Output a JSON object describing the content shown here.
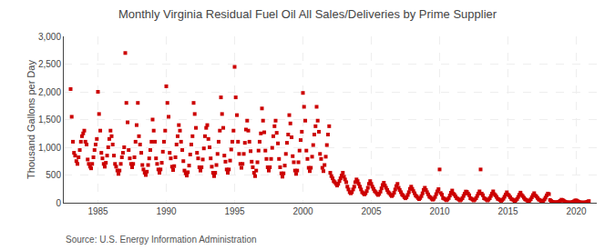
{
  "chart_data": {
    "type": "scatter",
    "title": "Monthly Virginia Residual Fuel Oil All Sales/Deliveries by Prime Supplier",
    "ylabel": "Thousand Gallons per Day",
    "annotations": [
      "Source: U.S. Energy Information Administration"
    ],
    "color": "#cc0000",
    "marker": "square",
    "grid": true,
    "xlim": [
      1982.5,
      2021.5
    ],
    "ylim": [
      0,
      3000
    ],
    "xticks": [
      1985,
      1990,
      1995,
      2000,
      2005,
      2010,
      2015,
      2020
    ],
    "yticks": [
      0,
      500,
      {
        "value": 1000,
        "label": "1,000"
      },
      {
        "value": 1500,
        "label": "1,500"
      },
      {
        "value": 2000,
        "label": "2,000"
      },
      {
        "value": 2500,
        "label": "2,500"
      },
      {
        "value": 3000,
        "label": "3,000"
      }
    ],
    "x": [
      1983.0,
      1983.08,
      1983.17,
      1983.25,
      1983.33,
      1983.42,
      1983.5,
      1983.58,
      1983.67,
      1983.75,
      1983.83,
      1983.92,
      1984.0,
      1984.08,
      1984.17,
      1984.25,
      1984.33,
      1984.42,
      1984.5,
      1984.58,
      1984.67,
      1984.75,
      1984.83,
      1984.92,
      1985.0,
      1985.08,
      1985.17,
      1985.25,
      1985.33,
      1985.42,
      1985.5,
      1985.58,
      1985.67,
      1985.75,
      1985.83,
      1985.92,
      1986.0,
      1986.08,
      1986.17,
      1986.25,
      1986.33,
      1986.42,
      1986.5,
      1986.58,
      1986.67,
      1986.75,
      1986.83,
      1986.92,
      1987.0,
      1987.08,
      1987.17,
      1987.25,
      1987.33,
      1987.42,
      1987.5,
      1987.58,
      1987.67,
      1987.75,
      1987.83,
      1987.92,
      1988.0,
      1988.08,
      1988.17,
      1988.25,
      1988.33,
      1988.42,
      1988.5,
      1988.58,
      1988.67,
      1988.75,
      1988.83,
      1988.92,
      1989.0,
      1989.08,
      1989.17,
      1989.25,
      1989.33,
      1989.42,
      1989.5,
      1989.58,
      1989.67,
      1989.75,
      1989.83,
      1989.92,
      1990.0,
      1990.08,
      1990.17,
      1990.25,
      1990.33,
      1990.42,
      1990.5,
      1990.58,
      1990.67,
      1990.75,
      1990.83,
      1990.92,
      1991.0,
      1991.08,
      1991.17,
      1991.25,
      1991.33,
      1991.42,
      1991.5,
      1991.58,
      1991.67,
      1991.75,
      1991.83,
      1991.92,
      1992.0,
      1992.08,
      1992.17,
      1992.25,
      1992.33,
      1992.42,
      1992.5,
      1992.58,
      1992.67,
      1992.75,
      1992.83,
      1992.92,
      1993.0,
      1993.08,
      1993.17,
      1993.25,
      1993.33,
      1993.42,
      1993.5,
      1993.58,
      1993.67,
      1993.75,
      1993.83,
      1993.92,
      1994.0,
      1994.08,
      1994.17,
      1994.25,
      1994.33,
      1994.42,
      1994.5,
      1994.58,
      1994.67,
      1994.75,
      1994.83,
      1994.92,
      1995.0,
      1995.08,
      1995.17,
      1995.25,
      1995.33,
      1995.42,
      1995.5,
      1995.58,
      1995.67,
      1995.75,
      1995.83,
      1995.92,
      1996.0,
      1996.08,
      1996.17,
      1996.25,
      1996.33,
      1996.42,
      1996.5,
      1996.58,
      1996.67,
      1996.75,
      1996.83,
      1996.92,
      1997.0,
      1997.08,
      1997.17,
      1997.25,
      1997.33,
      1997.42,
      1997.5,
      1997.58,
      1997.67,
      1997.75,
      1997.83,
      1997.92,
      1998.0,
      1998.08,
      1998.17,
      1998.25,
      1998.33,
      1998.42,
      1998.5,
      1998.58,
      1998.67,
      1998.75,
      1998.83,
      1998.92,
      1999.0,
      1999.08,
      1999.17,
      1999.25,
      1999.33,
      1999.42,
      1999.5,
      1999.58,
      1999.67,
      1999.75,
      1999.83,
      1999.92,
      2000.0,
      2000.08,
      2000.17,
      2000.25,
      2000.33,
      2000.42,
      2000.5,
      2000.58,
      2000.67,
      2000.75,
      2000.83,
      2000.92,
      2001.0,
      2001.08,
      2001.17,
      2001.25,
      2001.33,
      2001.42,
      2001.5,
      2001.58,
      2001.67,
      2001.75,
      2001.83,
      2001.92,
      2002.0,
      2002.08,
      2002.17,
      2002.25,
      2002.33,
      2002.42,
      2002.5,
      2002.58,
      2002.67,
      2002.75,
      2002.83,
      2002.92,
      2003.0,
      2003.08,
      2003.17,
      2003.25,
      2003.33,
      2003.42,
      2003.5,
      2003.58,
      2003.67,
      2003.75,
      2003.83,
      2003.92,
      2004.0,
      2004.08,
      2004.17,
      2004.25,
      2004.33,
      2004.42,
      2004.5,
      2004.58,
      2004.67,
      2004.75,
      2004.83,
      2004.92,
      2005.0,
      2005.08,
      2005.17,
      2005.25,
      2005.33,
      2005.42,
      2005.5,
      2005.58,
      2005.67,
      2005.75,
      2005.83,
      2005.92,
      2006.0,
      2006.08,
      2006.17,
      2006.25,
      2006.33,
      2006.42,
      2006.5,
      2006.58,
      2006.67,
      2006.75,
      2006.83,
      2006.92,
      2007.0,
      2007.08,
      2007.17,
      2007.25,
      2007.33,
      2007.42,
      2007.5,
      2007.58,
      2007.67,
      2007.75,
      2007.83,
      2007.92,
      2008.0,
      2008.08,
      2008.17,
      2008.25,
      2008.33,
      2008.42,
      2008.5,
      2008.58,
      2008.67,
      2008.75,
      2008.83,
      2008.92,
      2009.0,
      2009.08,
      2009.17,
      2009.25,
      2009.33,
      2009.42,
      2009.5,
      2009.58,
      2009.67,
      2009.75,
      2009.83,
      2009.92,
      2010.0,
      2010.08,
      2010.17,
      2010.25,
      2010.33,
      2010.42,
      2010.5,
      2010.58,
      2010.67,
      2010.75,
      2010.83,
      2010.92,
      2011.0,
      2011.08,
      2011.17,
      2011.25,
      2011.33,
      2011.42,
      2011.5,
      2011.58,
      2011.67,
      2011.75,
      2011.83,
      2011.92,
      2012.0,
      2012.08,
      2012.17,
      2012.25,
      2012.33,
      2012.42,
      2012.5,
      2012.58,
      2012.67,
      2012.75,
      2012.83,
      2012.92,
      2013.0,
      2013.08,
      2013.17,
      2013.25,
      2013.33,
      2013.42,
      2013.5,
      2013.58,
      2013.67,
      2013.75,
      2013.83,
      2013.92,
      2014.0,
      2014.08,
      2014.17,
      2014.25,
      2014.33,
      2014.42,
      2014.5,
      2014.58,
      2014.67,
      2014.75,
      2014.83,
      2014.92,
      2015.0,
      2015.08,
      2015.17,
      2015.25,
      2015.33,
      2015.42,
      2015.5,
      2015.58,
      2015.67,
      2015.75,
      2015.83,
      2015.92,
      2016.0,
      2016.08,
      2016.17,
      2016.25,
      2016.33,
      2016.42,
      2016.5,
      2016.58,
      2016.67,
      2016.75,
      2016.83,
      2016.92,
      2017.0,
      2017.08,
      2017.17,
      2017.25,
      2017.33,
      2017.42,
      2017.5,
      2017.58,
      2017.67,
      2017.75,
      2017.83,
      2017.92,
      2018.0,
      2018.08,
      2018.17,
      2018.25,
      2018.33,
      2018.42,
      2018.5,
      2018.58,
      2018.67,
      2018.75,
      2018.83,
      2018.92,
      2019.0,
      2019.08,
      2019.17,
      2019.25,
      2019.33,
      2019.42,
      2019.5,
      2019.58,
      2019.67,
      2019.75,
      2019.83,
      2019.92,
      2020.0,
      2020.08,
      2020.17,
      2020.25,
      2020.33,
      2020.42,
      2020.5,
      2020.58,
      2020.67,
      2020.75,
      2020.83,
      2020.92
    ],
    "values": [
      2050,
      1550,
      1100,
      900,
      850,
      750,
      700,
      820,
      950,
      1100,
      1200,
      1250,
      1300,
      1100,
      1050,
      780,
      700,
      650,
      620,
      700,
      820,
      950,
      1050,
      1150,
      2000,
      1600,
      1300,
      900,
      800,
      700,
      650,
      720,
      850,
      1000,
      1150,
      1300,
      1200,
      1050,
      850,
      700,
      650,
      580,
      520,
      580,
      700,
      820,
      900,
      1000,
      2700,
      1800,
      1450,
      950,
      800,
      700,
      640,
      700,
      820,
      1100,
      1400,
      1800,
      1200,
      1050,
      900,
      680,
      600,
      540,
      500,
      560,
      680,
      800,
      950,
      1100,
      1500,
      1300,
      1100,
      800,
      700,
      600,
      540,
      600,
      720,
      920,
      1100,
      1300,
      2100,
      1800,
      1550,
      900,
      800,
      650,
      590,
      660,
      820,
      1050,
      1200,
      1400,
      1300,
      1100,
      950,
      750,
      580,
      530,
      490,
      550,
      670,
      870,
      1050,
      1200,
      1800,
      1600,
      1350,
      900,
      800,
      640,
      580,
      640,
      780,
      980,
      1200,
      1350,
      1400,
      1150,
      1000,
      800,
      650,
      540,
      480,
      540,
      680,
      880,
      1100,
      1300,
      1900,
      1600,
      1350,
      850,
      740,
      600,
      540,
      600,
      760,
      960,
      1100,
      1300,
      2450,
      1900,
      1580,
      1100,
      880,
      700,
      630,
      700,
      880,
      1080,
      1320,
      1480,
      1300,
      1100,
      930,
      740,
      640,
      540,
      480,
      580,
      730,
      940,
      1100,
      1250,
      1700,
      1480,
      1270,
      940,
      790,
      640,
      580,
      640,
      790,
      990,
      1200,
      1380,
      1480,
      1260,
      1070,
      790,
      640,
      530,
      470,
      530,
      670,
      880,
      1080,
      1230,
      1580,
      1430,
      1180,
      840,
      730,
      580,
      520,
      580,
      730,
      940,
      1130,
      1280,
      1980,
      1730,
      1480,
      940,
      790,
      630,
      570,
      630,
      830,
      1040,
      1230,
      1380,
      1730,
      1480,
      1280,
      880,
      790,
      630,
      570,
      680,
      830,
      1040,
      1230,
      1380,
      540,
      480,
      440,
      390,
      370,
      340,
      310,
      340,
      390,
      440,
      490,
      540,
      470,
      420,
      370,
      290,
      240,
      190,
      170,
      190,
      240,
      290,
      370,
      420,
      390,
      340,
      290,
      240,
      190,
      170,
      150,
      170,
      210,
      270,
      340,
      390,
      340,
      290,
      250,
      210,
      190,
      160,
      140,
      160,
      200,
      260,
      320,
      360,
      310,
      270,
      230,
      190,
      170,
      140,
      120,
      140,
      180,
      240,
      300,
      340,
      270,
      230,
      190,
      150,
      130,
      100,
      80,
      100,
      140,
      190,
      250,
      290,
      250,
      210,
      170,
      130,
      110,
      85,
      65,
      85,
      120,
      170,
      230,
      270,
      230,
      190,
      150,
      110,
      95,
      72,
      55,
      72,
      105,
      155,
      205,
      245,
      600,
      175,
      145,
      85,
      75,
      58,
      45,
      58,
      85,
      130,
      180,
      220,
      165,
      145,
      115,
      82,
      72,
      55,
      42,
      55,
      82,
      122,
      162,
      202,
      195,
      165,
      135,
      82,
      72,
      55,
      42,
      55,
      82,
      122,
      165,
      205,
      600,
      165,
      135,
      82,
      72,
      55,
      42,
      55,
      82,
      122,
      165,
      205,
      155,
      135,
      105,
      72,
      62,
      48,
      35,
      48,
      72,
      108,
      148,
      188,
      148,
      128,
      98,
      68,
      58,
      44,
      32,
      44,
      68,
      104,
      144,
      182,
      140,
      120,
      90,
      62,
      52,
      38,
      26,
      38,
      62,
      98,
      138,
      172,
      130,
      112,
      85,
      58,
      48,
      34,
      22,
      34,
      58,
      92,
      132,
      165,
      155,
      50,
      30,
      15,
      10,
      8,
      6,
      8,
      12,
      20,
      35,
      55,
      48,
      35,
      20,
      10,
      8,
      5,
      4,
      5,
      8,
      15,
      25,
      40,
      42,
      30,
      18,
      8,
      6,
      4,
      3,
      4,
      6,
      10,
      18,
      30
    ]
  }
}
